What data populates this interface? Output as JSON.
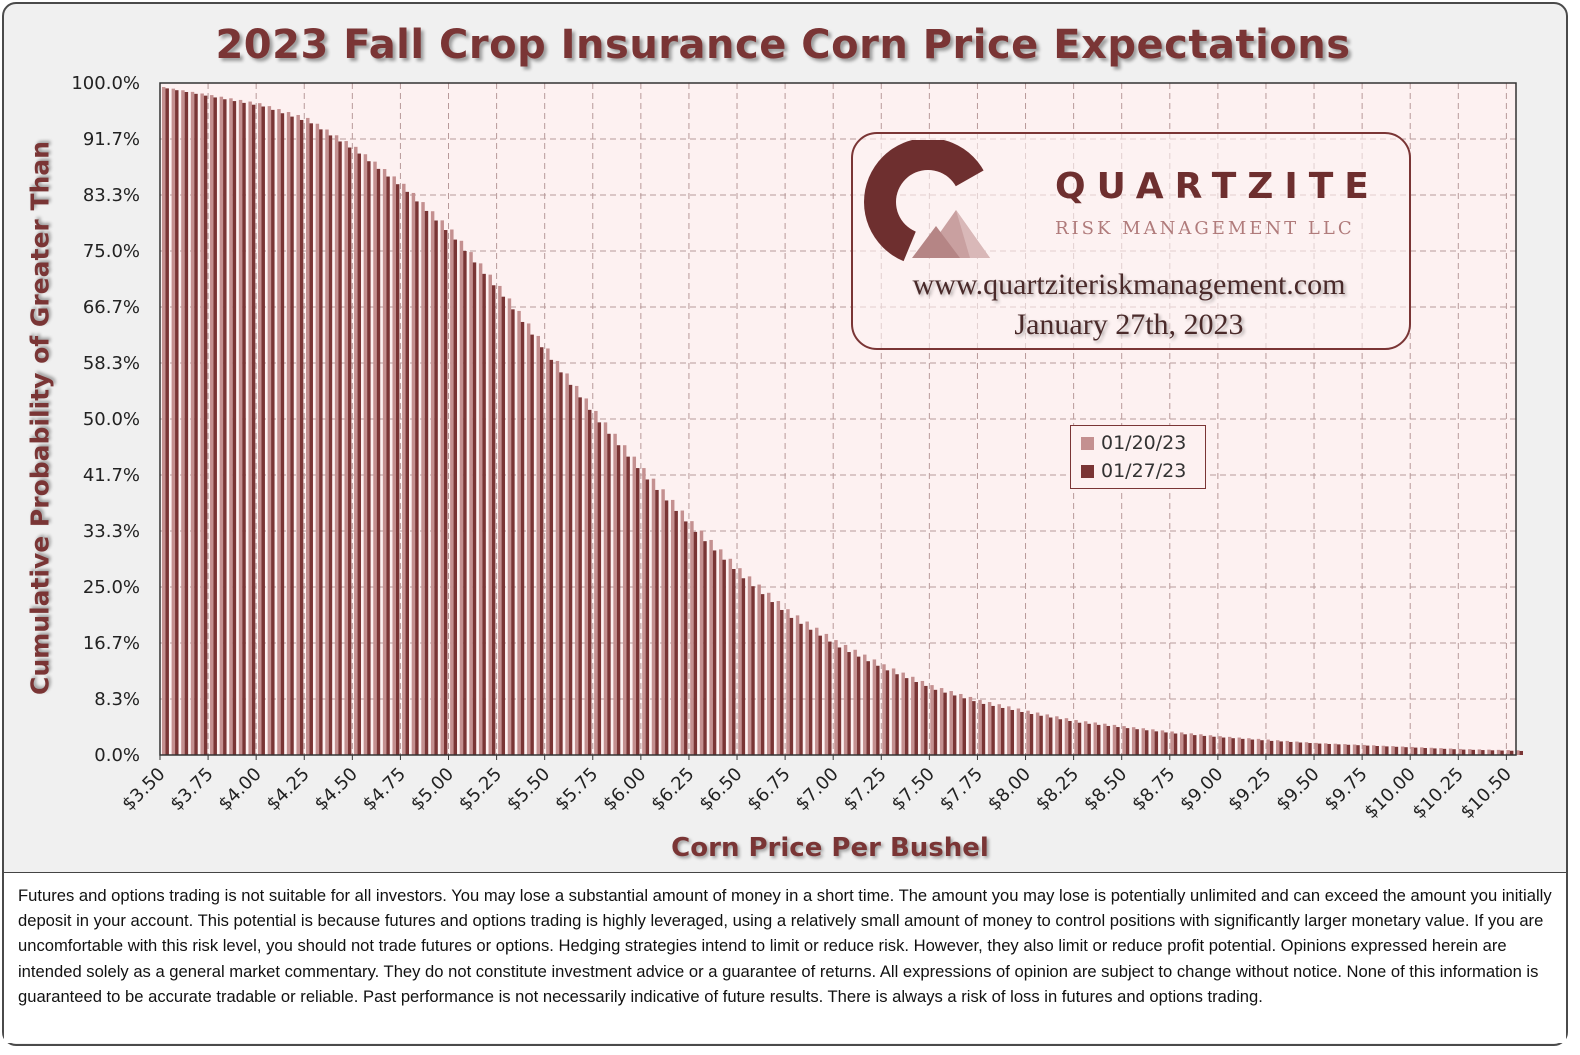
{
  "chart_data": {
    "type": "bar",
    "title": "2023 Fall Crop Insurance Corn Price Expectations",
    "xlabel": "Corn Price Per Bushel",
    "ylabel": "Cumulative Probability of Greater Than",
    "x_tick_labels": [
      "$3.50",
      "$3.75",
      "$4.00",
      "$4.25",
      "$4.50",
      "$4.75",
      "$5.00",
      "$5.25",
      "$5.50",
      "$5.75",
      "$6.00",
      "$6.25",
      "$6.50",
      "$6.75",
      "$7.00",
      "$7.25",
      "$7.50",
      "$7.75",
      "$8.00",
      "$8.25",
      "$8.50",
      "$8.75",
      "$9.00",
      "$9.25",
      "$9.50",
      "$9.75",
      "$10.00",
      "$10.25",
      "$10.50"
    ],
    "y_tick_labels": [
      "0.0%",
      "8.3%",
      "16.7%",
      "25.0%",
      "33.3%",
      "41.7%",
      "50.0%",
      "58.3%",
      "66.7%",
      "75.0%",
      "83.3%",
      "91.7%",
      "100.0%"
    ],
    "ylim": [
      0,
      100
    ],
    "xlim": [
      3.5,
      10.55
    ],
    "x_step": 0.05,
    "grid": true,
    "legend_position": "center-right",
    "series": [
      {
        "name": "01/20/23",
        "color": "#c49090",
        "control_points": [
          [
            3.5,
            99.4
          ],
          [
            4.0,
            97.0
          ],
          [
            4.25,
            94.8
          ],
          [
            4.5,
            90.5
          ],
          [
            4.75,
            85.0
          ],
          [
            5.0,
            78.2
          ],
          [
            5.25,
            69.8
          ],
          [
            5.5,
            60.5
          ],
          [
            5.75,
            51.2
          ],
          [
            6.0,
            42.7
          ],
          [
            6.25,
            34.8
          ],
          [
            6.5,
            27.8
          ],
          [
            6.75,
            21.7
          ],
          [
            7.0,
            17.1
          ],
          [
            7.25,
            13.5
          ],
          [
            7.5,
            10.4
          ],
          [
            7.75,
            8.2
          ],
          [
            8.0,
            6.6
          ],
          [
            8.25,
            5.2
          ],
          [
            8.5,
            4.3
          ],
          [
            8.75,
            3.5
          ],
          [
            9.0,
            2.8
          ],
          [
            9.25,
            2.3
          ],
          [
            9.5,
            1.8
          ],
          [
            9.75,
            1.5
          ],
          [
            10.0,
            1.2
          ],
          [
            10.25,
            0.9
          ],
          [
            10.55,
            0.7
          ]
        ]
      },
      {
        "name": "01/27/23",
        "color": "#7a3535",
        "control_points": [
          [
            3.5,
            99.2
          ],
          [
            4.0,
            96.5
          ],
          [
            4.25,
            94.0
          ],
          [
            4.5,
            89.5
          ],
          [
            4.75,
            83.8
          ],
          [
            5.0,
            76.7
          ],
          [
            5.25,
            68.2
          ],
          [
            5.5,
            58.8
          ],
          [
            5.75,
            49.5
          ],
          [
            6.0,
            41.0
          ],
          [
            6.25,
            33.2
          ],
          [
            6.5,
            26.3
          ],
          [
            6.75,
            20.4
          ],
          [
            7.0,
            16.0
          ],
          [
            7.25,
            12.6
          ],
          [
            7.5,
            9.7
          ],
          [
            7.75,
            7.6
          ],
          [
            8.0,
            6.1
          ],
          [
            8.25,
            4.8
          ],
          [
            8.5,
            4.0
          ],
          [
            8.75,
            3.2
          ],
          [
            9.0,
            2.6
          ],
          [
            9.25,
            2.1
          ],
          [
            9.5,
            1.7
          ],
          [
            9.75,
            1.4
          ],
          [
            10.0,
            1.1
          ],
          [
            10.25,
            0.8
          ],
          [
            10.55,
            0.6
          ]
        ]
      }
    ]
  },
  "logo": {
    "name": "QUARTZITE",
    "subtitle": "RISK MANAGEMENT LLC",
    "url": "www.quartziteriskmanagement.com",
    "date": "January 27th, 2023"
  },
  "disclaimer": "Futures and options trading is not suitable for all investors. You may lose a substantial amount of money in a short time. The amount you may lose is potentially unlimited and can exceed the amount you initially deposit in your account. This potential is because futures and options trading is highly leveraged, using a relatively small amount of money to control positions with significantly larger monetary value. If you are uncomfortable with this risk level, you should not trade futures or options. Hedging strategies intend to limit or reduce risk. However, they also limit or reduce profit potential. Opinions expressed herein are intended solely as a general market commentary. They do not constitute investment advice or a guarantee of returns. All expressions of opinion are subject to change without notice. None of this information is guaranteed to be accurate tradable or reliable. Past performance is not necessarily indicative of future results. There is always a risk of loss in futures and options trading.",
  "colors": {
    "accent": "#7a3535",
    "series_light": "#c49090",
    "plot_background": "#fdf1f1",
    "grid": "#b89a9a"
  }
}
